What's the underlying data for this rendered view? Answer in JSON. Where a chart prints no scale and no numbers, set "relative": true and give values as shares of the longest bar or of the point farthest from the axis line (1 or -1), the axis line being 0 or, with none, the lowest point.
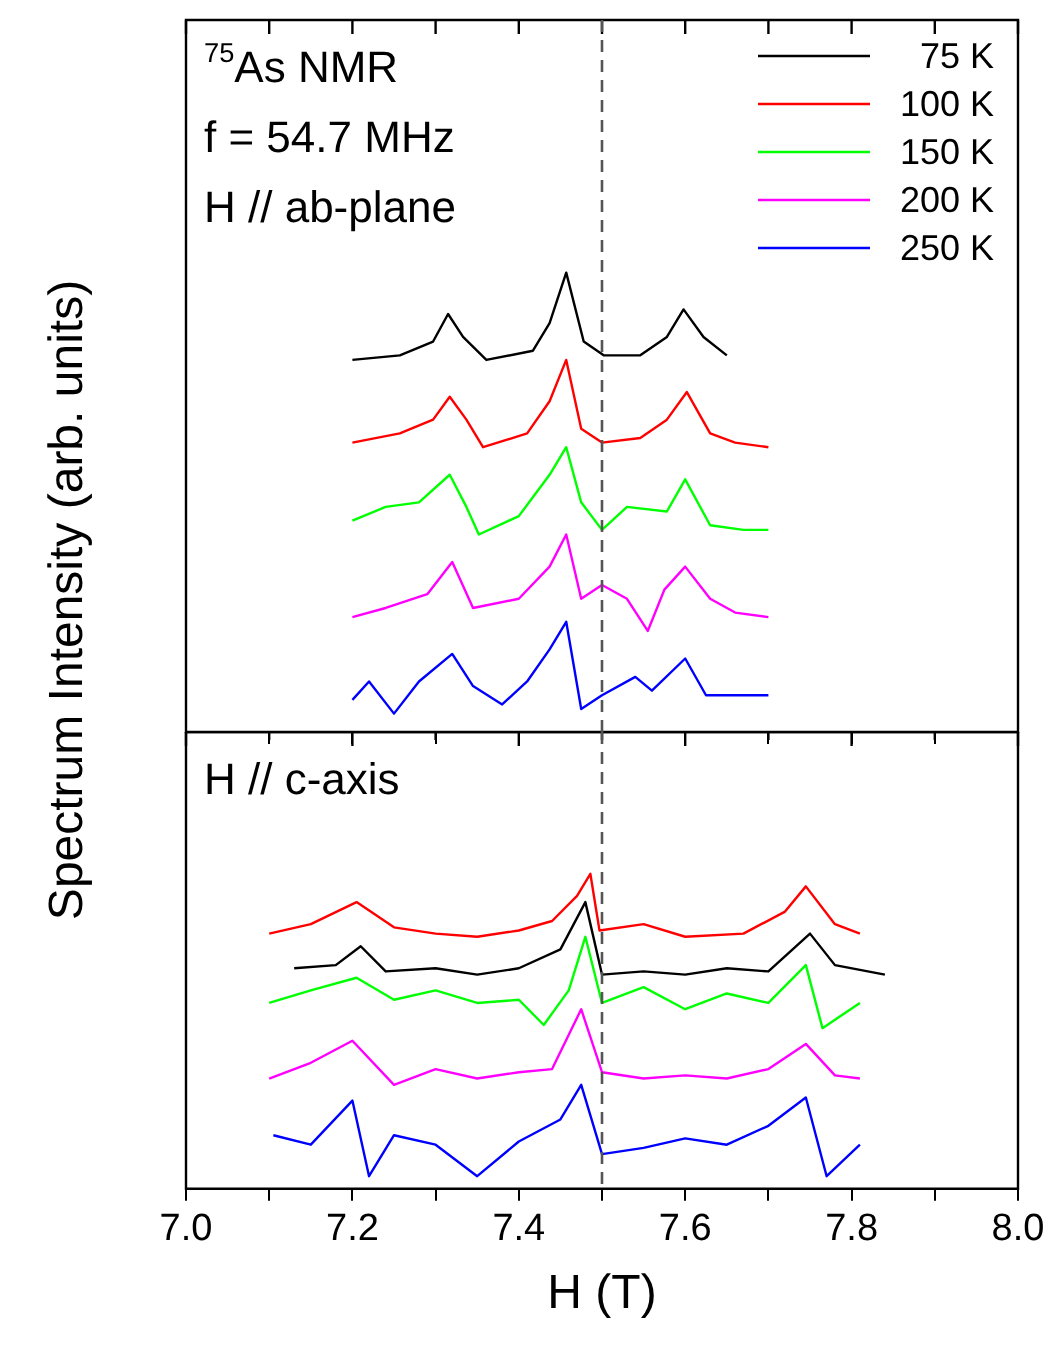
{
  "chart_data": [
    {
      "type": "line",
      "relative": true,
      "ylabel": "Spectrum Intensity (arb. units)",
      "annotations": [
        "$^{75}$As NMR",
        "f = 54.7 MHz",
        "H // ab-plane"
      ],
      "legend": "top right",
      "tick_labels": false,
      "xlim": [
        7.0,
        8.0
      ],
      "xticks": [
        7.0,
        7.1,
        7.2,
        7.3,
        7.4,
        7.5,
        7.6,
        7.7,
        7.8,
        7.9,
        8.0
      ],
      "ref_lines": [
        {
          "axis": "x",
          "value": 7.5,
          "color": "#555555",
          "line_style": "dashed"
        }
      ],
      "series": [
        {
          "name": "75 K",
          "color": "#000000",
          "x": [
            7.2,
            7.257,
            7.297,
            7.315,
            7.333,
            7.361,
            7.417,
            7.437,
            7.457,
            7.478,
            7.502,
            7.546,
            7.578,
            7.598,
            7.622,
            7.65
          ],
          "values": [
            0.81,
            0.82,
            0.85,
            0.91,
            0.86,
            0.81,
            0.83,
            0.89,
            1.0,
            0.85,
            0.82,
            0.82,
            0.86,
            0.92,
            0.86,
            0.82
          ]
        },
        {
          "name": "100 K",
          "color": "#ff0000",
          "x": [
            7.2,
            7.257,
            7.297,
            7.317,
            7.337,
            7.357,
            7.41,
            7.437,
            7.457,
            7.475,
            7.5,
            7.546,
            7.578,
            7.602,
            7.63,
            7.66,
            7.7
          ],
          "values": [
            0.63,
            0.65,
            0.68,
            0.73,
            0.68,
            0.62,
            0.65,
            0.72,
            0.81,
            0.66,
            0.63,
            0.64,
            0.68,
            0.74,
            0.65,
            0.63,
            0.62
          ]
        },
        {
          "name": "150 K",
          "color": "#00ff00",
          "x": [
            7.2,
            7.24,
            7.28,
            7.317,
            7.337,
            7.352,
            7.4,
            7.437,
            7.457,
            7.475,
            7.5,
            7.53,
            7.578,
            7.6,
            7.63,
            7.67,
            7.7
          ],
          "values": [
            0.46,
            0.49,
            0.5,
            0.56,
            0.49,
            0.43,
            0.47,
            0.56,
            0.62,
            0.5,
            0.44,
            0.49,
            0.48,
            0.55,
            0.45,
            0.44,
            0.44
          ]
        },
        {
          "name": "200 K",
          "color": "#ff00ff",
          "x": [
            7.2,
            7.24,
            7.29,
            7.32,
            7.345,
            7.4,
            7.437,
            7.457,
            7.475,
            7.5,
            7.53,
            7.555,
            7.575,
            7.6,
            7.63,
            7.66,
            7.7
          ],
          "values": [
            0.25,
            0.27,
            0.3,
            0.37,
            0.27,
            0.29,
            0.36,
            0.43,
            0.29,
            0.32,
            0.29,
            0.22,
            0.31,
            0.36,
            0.29,
            0.26,
            0.25
          ]
        },
        {
          "name": "250 K",
          "color": "#0000ff",
          "x": [
            7.2,
            7.22,
            7.25,
            7.28,
            7.32,
            7.345,
            7.38,
            7.41,
            7.437,
            7.457,
            7.475,
            7.5,
            7.54,
            7.56,
            7.6,
            7.625,
            7.66,
            7.7
          ],
          "values": [
            0.07,
            0.11,
            0.04,
            0.11,
            0.17,
            0.1,
            0.06,
            0.11,
            0.18,
            0.24,
            0.05,
            0.08,
            0.12,
            0.09,
            0.16,
            0.08,
            0.08,
            0.08
          ]
        }
      ]
    },
    {
      "type": "line",
      "relative": true,
      "xlabel": "H (T)",
      "annotations": [
        "H // c-axis"
      ],
      "tick_labels": "x",
      "xlim": [
        7.0,
        8.0
      ],
      "xticks": [
        {
          "value": 7.0,
          "label": "7.0"
        },
        {
          "value": 7.1,
          "label": null
        },
        {
          "value": 7.2,
          "label": "7.2"
        },
        {
          "value": 7.3,
          "label": null
        },
        {
          "value": 7.4,
          "label": "7.4"
        },
        {
          "value": 7.5,
          "label": null
        },
        {
          "value": 7.6,
          "label": "7.6"
        },
        {
          "value": 7.7,
          "label": null
        },
        {
          "value": 7.8,
          "label": "7.8"
        },
        {
          "value": 7.9,
          "label": null
        },
        {
          "value": 8.0,
          "label": "8.0"
        }
      ],
      "ref_lines": [
        {
          "axis": "x",
          "value": 7.5,
          "color": "#555555",
          "line_style": "dashed"
        }
      ],
      "series": [
        {
          "color": "#000000",
          "x": [
            7.13,
            7.18,
            7.21,
            7.24,
            7.3,
            7.35,
            7.4,
            7.45,
            7.48,
            7.5,
            7.55,
            7.6,
            7.65,
            7.7,
            7.75,
            7.78,
            7.84
          ],
          "values": [
            0.7,
            0.71,
            0.77,
            0.69,
            0.7,
            0.68,
            0.7,
            0.76,
            0.91,
            0.68,
            0.69,
            0.68,
            0.7,
            0.69,
            0.81,
            0.71,
            0.68
          ]
        },
        {
          "color": "#ff0000",
          "x": [
            7.1,
            7.15,
            7.205,
            7.25,
            7.3,
            7.35,
            7.4,
            7.44,
            7.47,
            7.486,
            7.497,
            7.55,
            7.6,
            7.67,
            7.72,
            7.745,
            7.78,
            7.81
          ],
          "values": [
            0.81,
            0.84,
            0.91,
            0.83,
            0.81,
            0.8,
            0.82,
            0.85,
            0.93,
            1.0,
            0.82,
            0.84,
            0.8,
            0.81,
            0.88,
            0.96,
            0.84,
            0.81
          ]
        },
        {
          "color": "#00ff00",
          "x": [
            7.1,
            7.15,
            7.205,
            7.25,
            7.3,
            7.35,
            7.4,
            7.43,
            7.46,
            7.48,
            7.5,
            7.55,
            7.6,
            7.65,
            7.7,
            7.745,
            7.765,
            7.81
          ],
          "values": [
            0.59,
            0.63,
            0.67,
            0.6,
            0.63,
            0.59,
            0.6,
            0.52,
            0.63,
            0.8,
            0.59,
            0.64,
            0.57,
            0.62,
            0.59,
            0.71,
            0.51,
            0.59
          ]
        },
        {
          "color": "#ff00ff",
          "x": [
            7.1,
            7.15,
            7.2,
            7.25,
            7.3,
            7.35,
            7.4,
            7.44,
            7.475,
            7.5,
            7.55,
            7.6,
            7.65,
            7.7,
            7.745,
            7.78,
            7.81
          ],
          "values": [
            0.35,
            0.4,
            0.47,
            0.33,
            0.38,
            0.35,
            0.37,
            0.38,
            0.57,
            0.37,
            0.35,
            0.36,
            0.35,
            0.38,
            0.46,
            0.36,
            0.35
          ]
        },
        {
          "color": "#0000ff",
          "x": [
            7.105,
            7.15,
            7.2,
            7.22,
            7.25,
            7.3,
            7.35,
            7.4,
            7.45,
            7.475,
            7.5,
            7.55,
            7.6,
            7.65,
            7.7,
            7.745,
            7.77,
            7.81
          ],
          "values": [
            0.17,
            0.14,
            0.28,
            0.04,
            0.17,
            0.14,
            0.04,
            0.15,
            0.22,
            0.33,
            0.11,
            0.13,
            0.16,
            0.14,
            0.2,
            0.29,
            0.04,
            0.14
          ]
        }
      ]
    }
  ]
}
